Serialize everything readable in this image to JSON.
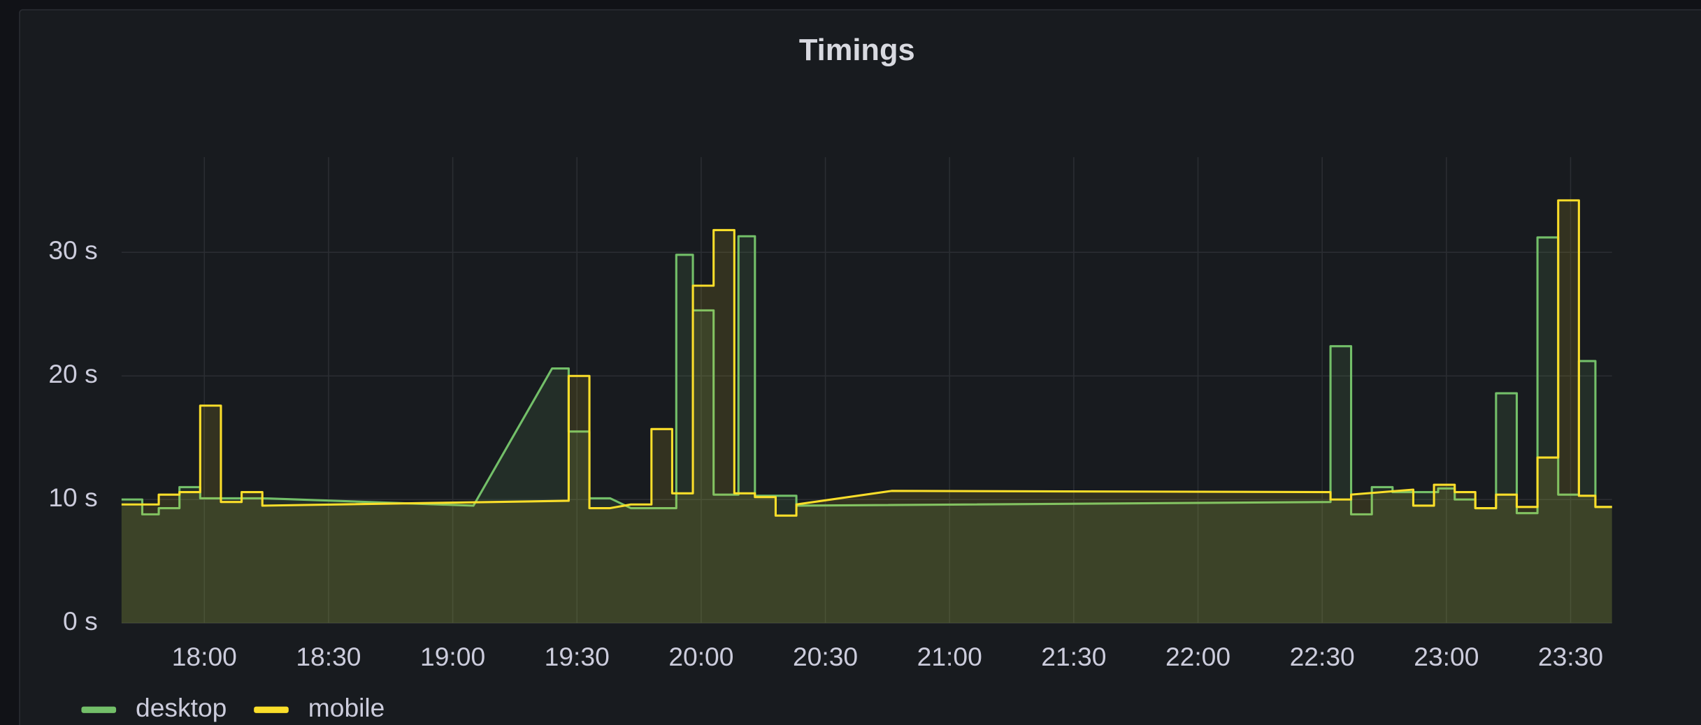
{
  "chart_data": {
    "type": "line",
    "title": "Timings",
    "xlim": [
      "17:40",
      "23:40"
    ],
    "xticks": [
      "18:00",
      "18:30",
      "19:00",
      "19:30",
      "20:00",
      "20:30",
      "21:00",
      "21:30",
      "22:00",
      "22:30",
      "23:00",
      "23:30"
    ],
    "ylim": [
      0,
      37.7
    ],
    "yticks": [
      {
        "value": 0,
        "label": "0 s"
      },
      {
        "value": 10,
        "label": "10 s"
      },
      {
        "value": 20,
        "label": "20 s"
      },
      {
        "value": 30,
        "label": "30 s"
      }
    ],
    "grid": true,
    "legend": "bottom-left",
    "series": [
      {
        "name": "desktop",
        "color": "#73bf69",
        "x": [
          "17:40",
          "17:45",
          "17:45",
          "17:49",
          "17:49",
          "17:54",
          "17:54",
          "17:59",
          "17:59",
          "18:14",
          "19:05",
          "19:24",
          "19:28",
          "19:28",
          "19:33",
          "19:33",
          "19:38",
          "19:43",
          "19:54",
          "19:54",
          "19:58",
          "19:58",
          "20:03",
          "20:03",
          "20:09",
          "20:09",
          "20:13",
          "20:13",
          "20:23",
          "20:23",
          "22:32",
          "22:32",
          "22:37",
          "22:37",
          "22:42",
          "22:42",
          "22:47",
          "22:47",
          "22:58",
          "22:58",
          "23:02",
          "23:02",
          "23:07",
          "23:07",
          "23:12",
          "23:12",
          "23:17",
          "23:17",
          "23:22",
          "23:22",
          "23:27",
          "23:27",
          "23:32",
          "23:32",
          "23:36",
          "23:36",
          "23:40"
        ],
        "values": [
          10.0,
          10.0,
          8.8,
          8.8,
          9.3,
          9.3,
          11.0,
          11.0,
          10.1,
          10.1,
          9.5,
          20.6,
          20.6,
          15.5,
          15.5,
          10.1,
          10.1,
          9.3,
          9.3,
          29.8,
          29.8,
          25.3,
          25.3,
          10.4,
          10.4,
          31.3,
          31.3,
          10.3,
          10.3,
          9.5,
          9.8,
          22.4,
          22.4,
          8.8,
          8.8,
          11.0,
          11.0,
          10.6,
          10.6,
          10.9,
          10.9,
          10.0,
          10.0,
          9.3,
          9.3,
          18.6,
          18.6,
          8.9,
          8.9,
          31.2,
          31.2,
          10.4,
          10.4,
          21.2,
          21.2,
          9.4,
          9.4
        ]
      },
      {
        "name": "mobile",
        "color": "#fade2a",
        "x": [
          "17:40",
          "17:45",
          "17:49",
          "17:49",
          "17:54",
          "17:54",
          "17:59",
          "17:59",
          "18:04",
          "18:04",
          "18:09",
          "18:09",
          "18:14",
          "18:14",
          "19:28",
          "19:28",
          "19:33",
          "19:33",
          "19:38",
          "19:43",
          "19:48",
          "19:48",
          "19:53",
          "19:53",
          "19:58",
          "19:58",
          "20:03",
          "20:03",
          "20:08",
          "20:08",
          "20:13",
          "20:13",
          "20:18",
          "20:18",
          "20:23",
          "20:23",
          "20:46",
          "22:32",
          "22:32",
          "22:37",
          "22:37",
          "22:52",
          "22:52",
          "22:57",
          "22:57",
          "23:02",
          "23:02",
          "23:07",
          "23:07",
          "23:12",
          "23:12",
          "23:17",
          "23:17",
          "23:22",
          "23:22",
          "23:27",
          "23:27",
          "23:32",
          "23:32",
          "23:36",
          "23:36",
          "23:40"
        ],
        "values": [
          9.6,
          9.6,
          9.6,
          10.4,
          10.4,
          10.6,
          10.6,
          17.6,
          17.6,
          9.8,
          9.8,
          10.6,
          10.6,
          9.5,
          9.9,
          20.0,
          20.0,
          9.3,
          9.3,
          9.6,
          9.6,
          15.7,
          15.7,
          10.5,
          10.5,
          27.3,
          27.3,
          31.8,
          31.8,
          10.5,
          10.5,
          10.2,
          10.2,
          8.7,
          8.7,
          9.6,
          10.7,
          10.6,
          10.0,
          10.0,
          10.4,
          10.8,
          9.5,
          9.5,
          11.2,
          11.2,
          10.6,
          10.6,
          9.3,
          9.3,
          10.4,
          10.4,
          9.4,
          9.4,
          13.4,
          13.4,
          34.2,
          34.2,
          10.3,
          10.3,
          9.4,
          9.4
        ]
      }
    ]
  }
}
